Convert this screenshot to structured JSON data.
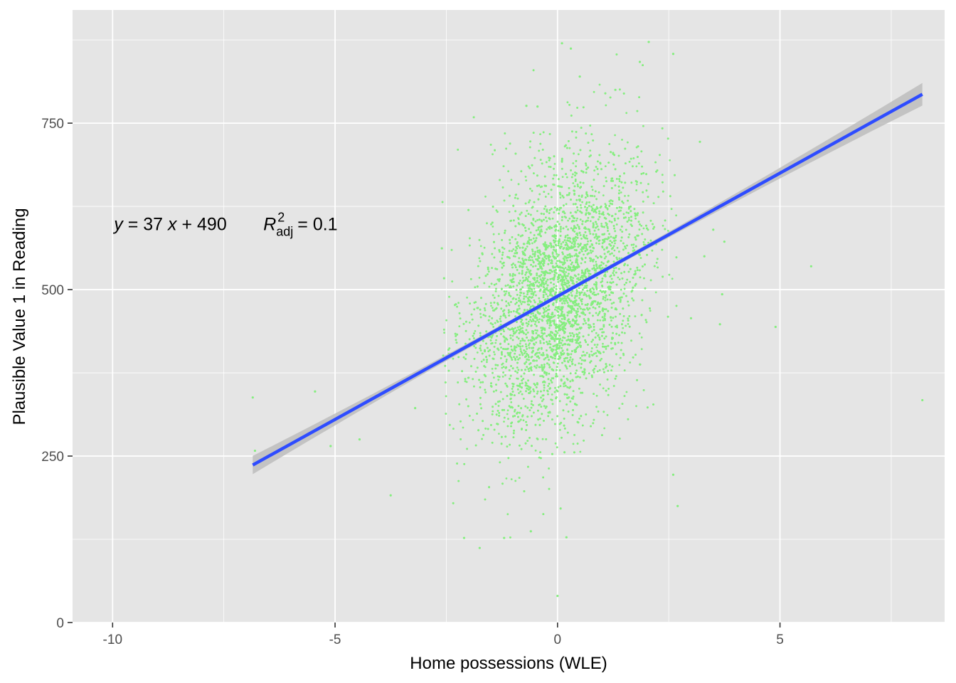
{
  "chart_data": {
    "type": "scatter",
    "xlabel": "Home possessions (WLE)",
    "ylabel": "Plausible Value 1 in Reading",
    "xlim": [
      -10.9,
      8.7
    ],
    "ylim": [
      0,
      920
    ],
    "x_ticks": [
      -10,
      -5,
      0,
      5
    ],
    "x_tick_labels": [
      "-10",
      "-5",
      "0",
      "5"
    ],
    "y_ticks": [
      0,
      250,
      500,
      750
    ],
    "y_tick_labels": [
      "0",
      "250",
      "500",
      "750"
    ],
    "grid": true,
    "legend": "none",
    "colors": {
      "panel": "#e5e5e5",
      "grid": "#ffffff",
      "points": "#85ee7f",
      "fit_line": "#2e4cff",
      "confidence_band": "#bdbdbd"
    },
    "regression": {
      "slope": 37,
      "intercept": 490,
      "r2_adj": 0.1,
      "x_range": [
        -6.85,
        8.2
      ],
      "ci_halfwidth_ends": 17
    },
    "annotation": {
      "equation_y": "y",
      "equation_body": " = 37 ",
      "equation_x": "x",
      "equation_tail": " + 490",
      "r_symbol": "R",
      "r_superscript": "2",
      "r_subscript": "adj",
      "r_value": " = 0.1",
      "x": -10,
      "y": 600
    },
    "outlier_points": [
      {
        "x": -6.85,
        "y": 338
      },
      {
        "x": -6.8,
        "y": 258
      },
      {
        "x": -5.45,
        "y": 347
      },
      {
        "x": -5.1,
        "y": 265
      },
      {
        "x": -4.45,
        "y": 275
      },
      {
        "x": -3.75,
        "y": 191
      },
      {
        "x": -3.2,
        "y": 322
      },
      {
        "x": -2.6,
        "y": 562
      },
      {
        "x": -2.55,
        "y": 517
      },
      {
        "x": -2.1,
        "y": 127
      },
      {
        "x": -1.75,
        "y": 112
      },
      {
        "x": -1.2,
        "y": 127
      },
      {
        "x": -0.6,
        "y": 137
      },
      {
        "x": 0.0,
        "y": 40
      },
      {
        "x": 0.2,
        "y": 128
      },
      {
        "x": 0.1,
        "y": 870
      },
      {
        "x": 0.3,
        "y": 862
      },
      {
        "x": 0.5,
        "y": 820
      },
      {
        "x": 1.85,
        "y": 842
      },
      {
        "x": 2.05,
        "y": 872
      },
      {
        "x": 2.6,
        "y": 854
      },
      {
        "x": 2.7,
        "y": 175
      },
      {
        "x": 2.6,
        "y": 222
      },
      {
        "x": 3.0,
        "y": 457
      },
      {
        "x": 3.2,
        "y": 722
      },
      {
        "x": 3.3,
        "y": 550
      },
      {
        "x": 3.65,
        "y": 448
      },
      {
        "x": 3.7,
        "y": 493
      },
      {
        "x": 3.75,
        "y": 572
      },
      {
        "x": 3.5,
        "y": 590
      },
      {
        "x": 4.9,
        "y": 444
      },
      {
        "x": 5.7,
        "y": 535
      },
      {
        "x": 8.2,
        "y": 334
      },
      {
        "x": -0.45,
        "y": 775
      },
      {
        "x": -0.7,
        "y": 776
      },
      {
        "x": 1.3,
        "y": 800
      }
    ]
  }
}
